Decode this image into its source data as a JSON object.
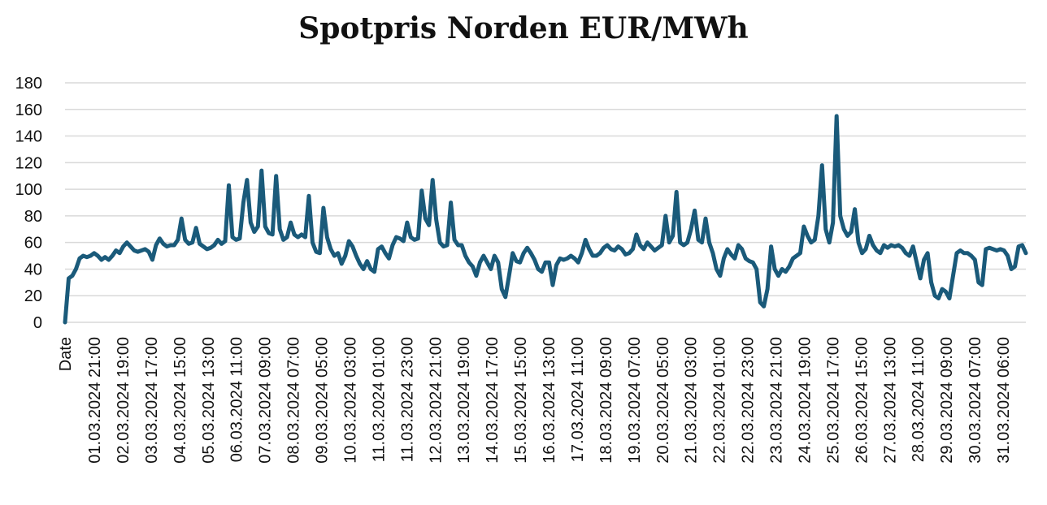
{
  "chart_data": {
    "type": "line",
    "title": "Spotpris Norden EUR/MWh",
    "xlabel": "",
    "ylabel": "",
    "ylim": [
      0,
      180
    ],
    "yticks": [
      0,
      20,
      40,
      60,
      80,
      100,
      120,
      140,
      160,
      180
    ],
    "grid": true,
    "legend": "none",
    "series_color": "#1a5a7a",
    "first_x_label": "Date",
    "x_tick_labels": [
      "01.03.2024 21:00",
      "02.03.2024 19:00",
      "03.03.2024 17:00",
      "04.03.2024 15:00",
      "05.03.2024 13:00",
      "06.03.2024 11:00",
      "07.03.2024 09:00",
      "08.03.2024 07:00",
      "09.03.2024 05:00",
      "10.03.2024 03:00",
      "11.03.2024 01:00",
      "11.03.2024 23:00",
      "12.03.2024 21:00",
      "13.03.2024 19:00",
      "14.03.2024 17:00",
      "15.03.2024 15:00",
      "16.03.2024 13:00",
      "17.03.2024 11:00",
      "18.03.2024 09:00",
      "19.03.2024 07:00",
      "20.03.2024 05:00",
      "21.03.2024 03:00",
      "22.03.2024 01:00",
      "22.03.2024 23:00",
      "23.03.2024 21:00",
      "24.03.2024 19:00",
      "25.03.2024 17:00",
      "26.03.2024 15:00",
      "27.03.2024 13:00",
      "28.03.2024 11:00",
      "29.03.2024 09:00",
      "30.03.2024 07:00",
      "31.03.2024 06:00"
    ],
    "series": [
      {
        "values": [
          0,
          33,
          35,
          40,
          48,
          50,
          49,
          50,
          52,
          50,
          47,
          49,
          47,
          50,
          54,
          52,
          57,
          60,
          57,
          54,
          53,
          54,
          55,
          53,
          47,
          58,
          63,
          59,
          57,
          58,
          58,
          62,
          78,
          62,
          59,
          60,
          71,
          59,
          57,
          55,
          56,
          58,
          62,
          59,
          61,
          103,
          64,
          62,
          63,
          90,
          107,
          75,
          68,
          72,
          114,
          72,
          67,
          66,
          110,
          70,
          62,
          64,
          75,
          66,
          64,
          66,
          64,
          95,
          60,
          53,
          52,
          86,
          64,
          55,
          50,
          52,
          44,
          50,
          61,
          57,
          50,
          44,
          40,
          46,
          40,
          38,
          55,
          57,
          52,
          48,
          58,
          64,
          63,
          61,
          75,
          64,
          62,
          63,
          99,
          78,
          73,
          107,
          77,
          60,
          57,
          58,
          90,
          62,
          58,
          58,
          50,
          45,
          42,
          35,
          45,
          50,
          45,
          40,
          50,
          45,
          25,
          19,
          35,
          52,
          46,
          45,
          52,
          56,
          52,
          47,
          40,
          38,
          45,
          45,
          28,
          43,
          48,
          47,
          48,
          50,
          48,
          45,
          52,
          62,
          55,
          50,
          50,
          52,
          56,
          58,
          55,
          54,
          57,
          55,
          51,
          52,
          55,
          66,
          58,
          55,
          60,
          57,
          54,
          56,
          58,
          80,
          60,
          65,
          98,
          60,
          58,
          60,
          70,
          84,
          62,
          60,
          78,
          60,
          52,
          40,
          35,
          48,
          55,
          51,
          48,
          58,
          55,
          48,
          46,
          45,
          40,
          15,
          12,
          25,
          57,
          40,
          35,
          40,
          38,
          42,
          48,
          50,
          52,
          72,
          65,
          60,
          62,
          80,
          118,
          70,
          60,
          75,
          155,
          80,
          70,
          65,
          68,
          85,
          60,
          52,
          55,
          65,
          58,
          54,
          52,
          58,
          56,
          58,
          57,
          58,
          56,
          52,
          50,
          57,
          45,
          33,
          47,
          52,
          30,
          20,
          18,
          25,
          23,
          18,
          35,
          52,
          54,
          52,
          52,
          50,
          47,
          30,
          28,
          55,
          56,
          55,
          54,
          55,
          54,
          50,
          40,
          42,
          57,
          58,
          52
        ]
      }
    ]
  }
}
